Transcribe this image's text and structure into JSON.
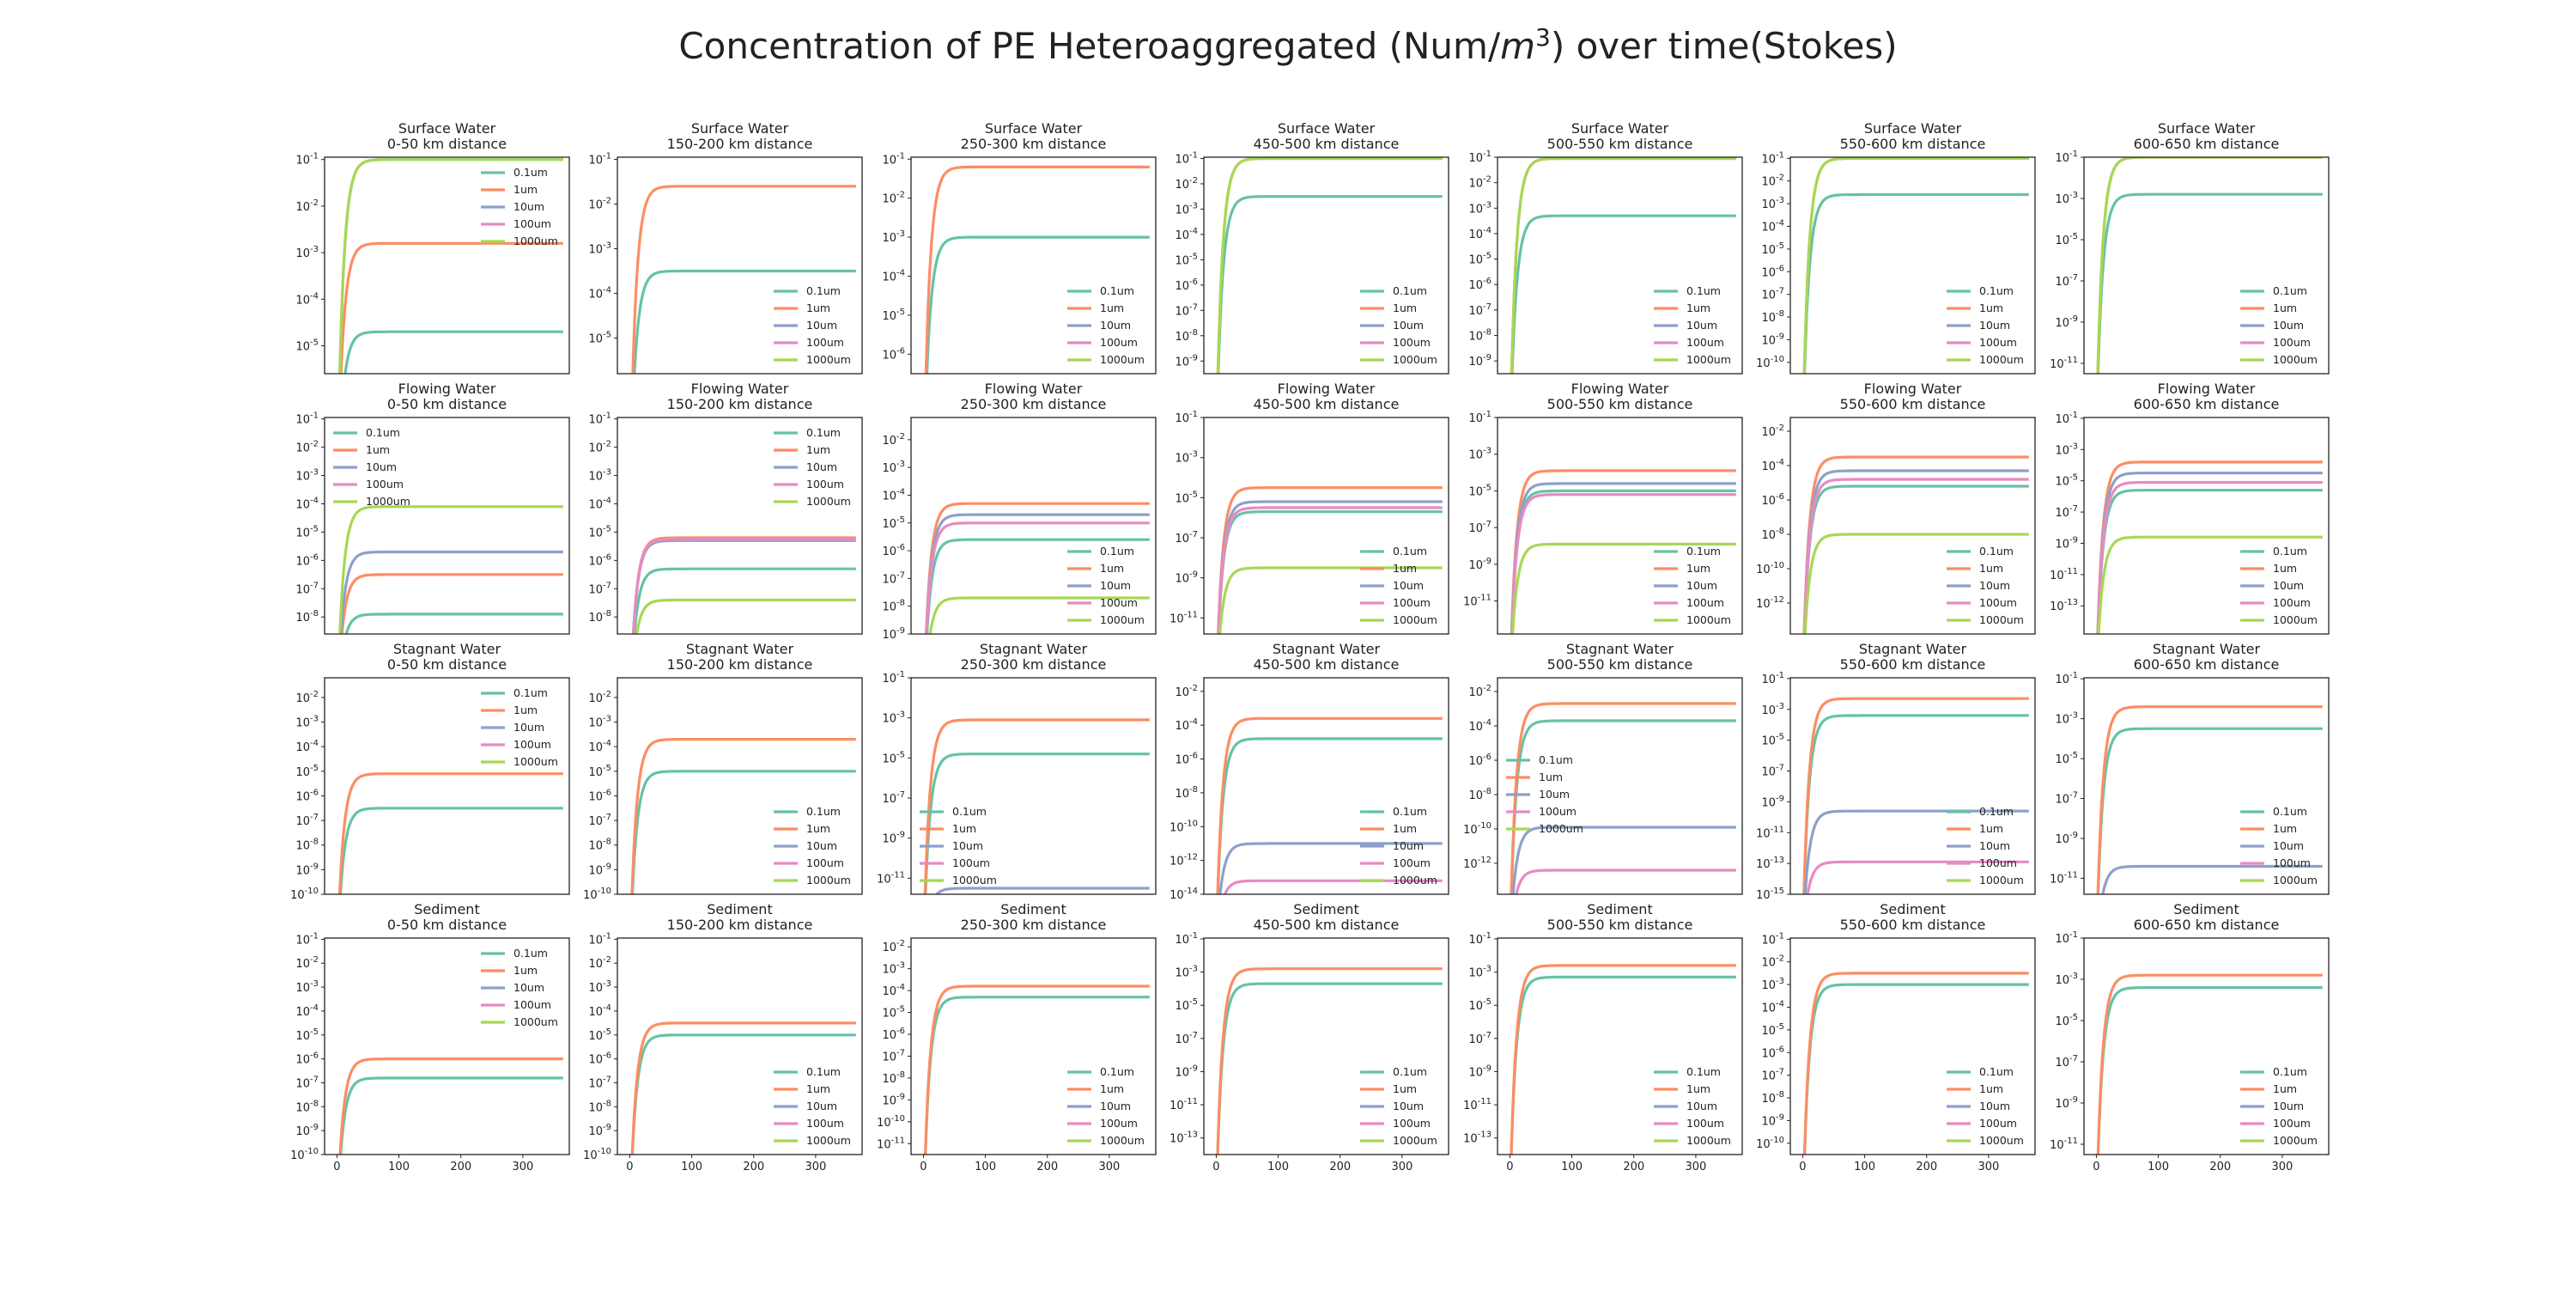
{
  "title_main": "Concentration of PE Heteroaggregated (Num/",
  "title_unit_m": "m",
  "title_unit_exp": "3",
  "title_tail": ") over time(Stokes)",
  "series_colors": {
    "0.1um": "#66c2a5",
    "1um": "#fc8d62",
    "10um": "#8da0cb",
    "100um": "#e78ac3",
    "1000um": "#a6d854"
  },
  "x_ticks": [
    0,
    100,
    200,
    300
  ],
  "chart_data": [
    {
      "type": "line",
      "yscale": "log",
      "compartment": "Surface Water",
      "distance": "0-50 km distance",
      "xlim": [
        -20,
        375
      ],
      "ylim": [
        -5.6,
        -0.95
      ],
      "legend": "upper right",
      "series": [
        {
          "name": "0.1um",
          "level": -4.7
        },
        {
          "name": "1um",
          "level": -2.8
        },
        {
          "name": "10um",
          "level": -1.0
        },
        {
          "name": "100um",
          "level": null
        },
        {
          "name": "1000um",
          "level": -1.0
        }
      ]
    },
    {
      "type": "line",
      "yscale": "log",
      "compartment": "Surface Water",
      "distance": "150-200 km distance",
      "xlim": [
        -20,
        375
      ],
      "ylim": [
        -5.8,
        -0.95
      ],
      "legend": "lower right",
      "series": [
        {
          "name": "0.1um",
          "level": -3.5
        },
        {
          "name": "1um",
          "level": -1.6
        },
        {
          "name": "10um",
          "level": null
        },
        {
          "name": "100um",
          "level": null
        },
        {
          "name": "1000um",
          "level": null
        }
      ]
    },
    {
      "type": "line",
      "yscale": "log",
      "compartment": "Surface Water",
      "distance": "250-300 km distance",
      "xlim": [
        -20,
        375
      ],
      "ylim": [
        -6.5,
        -0.95
      ],
      "legend": "lower right",
      "series": [
        {
          "name": "0.1um",
          "level": -3.0
        },
        {
          "name": "1um",
          "level": -1.2
        },
        {
          "name": "10um",
          "level": null
        },
        {
          "name": "100um",
          "level": null
        },
        {
          "name": "1000um",
          "level": null
        }
      ]
    },
    {
      "type": "line",
      "yscale": "log",
      "compartment": "Surface Water",
      "distance": "450-500 km distance",
      "xlim": [
        -20,
        375
      ],
      "ylim": [
        -9.5,
        -0.95
      ],
      "legend": "lower right",
      "series": [
        {
          "name": "0.1um",
          "level": -2.5
        },
        {
          "name": "1um",
          "level": -1.0
        },
        {
          "name": "10um",
          "level": null
        },
        {
          "name": "100um",
          "level": null
        },
        {
          "name": "1000um",
          "level": -1.0
        }
      ]
    },
    {
      "type": "line",
      "yscale": "log",
      "compartment": "Surface Water",
      "distance": "500-550 km distance",
      "xlim": [
        -20,
        375
      ],
      "ylim": [
        -9.5,
        -1.0
      ],
      "legend": "lower right",
      "series": [
        {
          "name": "0.1um",
          "level": -3.3
        },
        {
          "name": "1um",
          "level": -1.05
        },
        {
          "name": "10um",
          "level": null
        },
        {
          "name": "100um",
          "level": null
        },
        {
          "name": "1000um",
          "level": -1.05
        }
      ]
    },
    {
      "type": "line",
      "yscale": "log",
      "compartment": "Surface Water",
      "distance": "550-600 km distance",
      "xlim": [
        -20,
        375
      ],
      "ylim": [
        -10.5,
        -0.95
      ],
      "legend": "lower right",
      "series": [
        {
          "name": "0.1um",
          "level": -2.6
        },
        {
          "name": "1um",
          "level": -1.0
        },
        {
          "name": "10um",
          "level": null
        },
        {
          "name": "100um",
          "level": null
        },
        {
          "name": "1000um",
          "level": -1.0
        }
      ]
    },
    {
      "type": "line",
      "yscale": "log",
      "compartment": "Surface Water",
      "distance": "600-650 km distance",
      "xlim": [
        -20,
        375
      ],
      "ylim": [
        -11.5,
        -1.0
      ],
      "legend": "lower right",
      "series": [
        {
          "name": "0.1um",
          "level": -2.8
        },
        {
          "name": "1um",
          "level": -1.0
        },
        {
          "name": "10um",
          "level": null
        },
        {
          "name": "100um",
          "level": null
        },
        {
          "name": "1000um",
          "level": -1.0
        }
      ]
    },
    {
      "type": "line",
      "yscale": "log",
      "compartment": "Flowing Water",
      "distance": "0-50 km distance",
      "xlim": [
        -20,
        375
      ],
      "ylim": [
        -8.6,
        -0.95
      ],
      "legend": "upper left",
      "series": [
        {
          "name": "0.1um",
          "level": -7.9
        },
        {
          "name": "1um",
          "level": -6.5
        },
        {
          "name": "10um",
          "level": -5.7
        },
        {
          "name": "100um",
          "level": null
        },
        {
          "name": "1000um",
          "level": -4.1
        }
      ]
    },
    {
      "type": "line",
      "yscale": "log",
      "compartment": "Flowing Water",
      "distance": "150-200 km distance",
      "xlim": [
        -20,
        375
      ],
      "ylim": [
        -8.6,
        -0.95
      ],
      "legend": "upper right",
      "series": [
        {
          "name": "0.1um",
          "level": -6.3
        },
        {
          "name": "1um",
          "level": -5.2
        },
        {
          "name": "10um",
          "level": -5.3
        },
        {
          "name": "100um",
          "level": -5.25
        },
        {
          "name": "1000um",
          "level": -7.4
        }
      ]
    },
    {
      "type": "line",
      "yscale": "log",
      "compartment": "Flowing Water",
      "distance": "250-300 km distance",
      "xlim": [
        -20,
        375
      ],
      "ylim": [
        -9.0,
        -1.2
      ],
      "legend": "lower right",
      "series": [
        {
          "name": "0.1um",
          "level": -5.6
        },
        {
          "name": "1um",
          "level": -4.3
        },
        {
          "name": "10um",
          "level": -4.7
        },
        {
          "name": "100um",
          "level": -5.0
        },
        {
          "name": "1000um",
          "level": -7.7
        }
      ]
    },
    {
      "type": "line",
      "yscale": "log",
      "compartment": "Flowing Water",
      "distance": "450-500 km distance",
      "xlim": [
        -20,
        375
      ],
      "ylim": [
        -11.8,
        -1.0
      ],
      "legend": "lower right",
      "series": [
        {
          "name": "0.1um",
          "level": -5.7
        },
        {
          "name": "1um",
          "level": -4.5
        },
        {
          "name": "10um",
          "level": -5.2
        },
        {
          "name": "100um",
          "level": -5.5
        },
        {
          "name": "1000um",
          "level": -8.5
        }
      ]
    },
    {
      "type": "line",
      "yscale": "log",
      "compartment": "Flowing Water",
      "distance": "500-550 km distance",
      "xlim": [
        -20,
        375
      ],
      "ylim": [
        -12.8,
        -1.0
      ],
      "legend": "lower right",
      "series": [
        {
          "name": "0.1um",
          "level": -5.0
        },
        {
          "name": "1um",
          "level": -3.9
        },
        {
          "name": "10um",
          "level": -4.6
        },
        {
          "name": "100um",
          "level": -5.2
        },
        {
          "name": "1000um",
          "level": -7.9
        }
      ]
    },
    {
      "type": "line",
      "yscale": "log",
      "compartment": "Flowing Water",
      "distance": "550-600 km distance",
      "xlim": [
        -20,
        375
      ],
      "ylim": [
        -13.8,
        -1.2
      ],
      "legend": "lower right",
      "series": [
        {
          "name": "0.1um",
          "level": -5.2
        },
        {
          "name": "1um",
          "level": -3.5
        },
        {
          "name": "10um",
          "level": -4.3
        },
        {
          "name": "100um",
          "level": -4.8
        },
        {
          "name": "1000um",
          "level": -8.0
        }
      ]
    },
    {
      "type": "line",
      "yscale": "log",
      "compartment": "Flowing Water",
      "distance": "600-650 km distance",
      "xlim": [
        -20,
        375
      ],
      "ylim": [
        -14.8,
        -0.95
      ],
      "legend": "lower right",
      "series": [
        {
          "name": "0.1um",
          "level": -5.6
        },
        {
          "name": "1um",
          "level": -3.8
        },
        {
          "name": "10um",
          "level": -4.5
        },
        {
          "name": "100um",
          "level": -5.1
        },
        {
          "name": "1000um",
          "level": -8.6
        }
      ]
    },
    {
      "type": "line",
      "yscale": "log",
      "compartment": "Stagnant Water",
      "distance": "0-50 km distance",
      "xlim": [
        -20,
        375
      ],
      "ylim": [
        -10.0,
        -1.2
      ],
      "legend": "upper right",
      "series": [
        {
          "name": "0.1um",
          "level": -6.5
        },
        {
          "name": "1um",
          "level": -5.1
        },
        {
          "name": "10um",
          "level": null
        },
        {
          "name": "100um",
          "level": null
        },
        {
          "name": "1000um",
          "level": null
        }
      ]
    },
    {
      "type": "line",
      "yscale": "log",
      "compartment": "Stagnant Water",
      "distance": "150-200 km distance",
      "xlim": [
        -20,
        375
      ],
      "ylim": [
        -10.0,
        -1.2
      ],
      "legend": "lower right",
      "series": [
        {
          "name": "0.1um",
          "level": -5.0
        },
        {
          "name": "1um",
          "level": -3.7
        },
        {
          "name": "10um",
          "level": null
        },
        {
          "name": "100um",
          "level": null
        },
        {
          "name": "1000um",
          "level": null
        }
      ]
    },
    {
      "type": "line",
      "yscale": "log",
      "compartment": "Stagnant Water",
      "distance": "250-300 km distance",
      "xlim": [
        -20,
        375
      ],
      "ylim": [
        -11.8,
        -1.0
      ],
      "legend": "lower left",
      "series": [
        {
          "name": "0.1um",
          "level": -4.8
        },
        {
          "name": "1um",
          "level": -3.1
        },
        {
          "name": "10um",
          "level": -11.5
        },
        {
          "name": "100um",
          "level": null
        },
        {
          "name": "1000um",
          "level": null
        }
      ]
    },
    {
      "type": "line",
      "yscale": "log",
      "compartment": "Stagnant Water",
      "distance": "450-500 km distance",
      "xlim": [
        -20,
        375
      ],
      "ylim": [
        -14.0,
        -1.2
      ],
      "legend": "lower right",
      "series": [
        {
          "name": "0.1um",
          "level": -4.8
        },
        {
          "name": "1um",
          "level": -3.6
        },
        {
          "name": "10um",
          "level": -11.0
        },
        {
          "name": "100um",
          "level": -13.2
        },
        {
          "name": "1000um",
          "level": null
        }
      ]
    },
    {
      "type": "line",
      "yscale": "log",
      "compartment": "Stagnant Water",
      "distance": "500-550 km distance",
      "xlim": [
        -20,
        375
      ],
      "ylim": [
        -13.8,
        -1.2
      ],
      "legend": "center left",
      "series": [
        {
          "name": "0.1um",
          "level": -3.7
        },
        {
          "name": "1um",
          "level": -2.7
        },
        {
          "name": "10um",
          "level": -9.9
        },
        {
          "name": "100um",
          "level": -12.4
        },
        {
          "name": "1000um",
          "level": null
        }
      ]
    },
    {
      "type": "line",
      "yscale": "log",
      "compartment": "Stagnant Water",
      "distance": "550-600 km distance",
      "xlim": [
        -20,
        375
      ],
      "ylim": [
        -15.0,
        -0.95
      ],
      "legend": "lower right",
      "series": [
        {
          "name": "0.1um",
          "level": -3.4
        },
        {
          "name": "1um",
          "level": -2.3
        },
        {
          "name": "10um",
          "level": -9.6
        },
        {
          "name": "100um",
          "level": -12.9
        },
        {
          "name": "1000um",
          "level": null
        }
      ]
    },
    {
      "type": "line",
      "yscale": "log",
      "compartment": "Stagnant Water",
      "distance": "600-650 km distance",
      "xlim": [
        -20,
        375
      ],
      "ylim": [
        -11.8,
        -0.95
      ],
      "legend": "lower right",
      "series": [
        {
          "name": "0.1um",
          "level": -3.5
        },
        {
          "name": "1um",
          "level": -2.4
        },
        {
          "name": "10um",
          "level": -10.4
        },
        {
          "name": "100um",
          "level": null
        },
        {
          "name": "1000um",
          "level": null
        }
      ]
    },
    {
      "type": "line",
      "yscale": "log",
      "compartment": "Sediment",
      "distance": "0-50 km distance",
      "xlim": [
        -20,
        375
      ],
      "ylim": [
        -10.0,
        -0.95
      ],
      "legend": "upper right",
      "series": [
        {
          "name": "0.1um",
          "level": -6.8
        },
        {
          "name": "1um",
          "level": -6.0
        },
        {
          "name": "10um",
          "level": null
        },
        {
          "name": "100um",
          "level": null
        },
        {
          "name": "1000um",
          "level": null
        }
      ]
    },
    {
      "type": "line",
      "yscale": "log",
      "compartment": "Sediment",
      "distance": "150-200 km distance",
      "xlim": [
        -20,
        375
      ],
      "ylim": [
        -10.0,
        -0.95
      ],
      "legend": "lower right",
      "series": [
        {
          "name": "0.1um",
          "level": -5.0
        },
        {
          "name": "1um",
          "level": -4.5
        },
        {
          "name": "10um",
          "level": null
        },
        {
          "name": "100um",
          "level": null
        },
        {
          "name": "1000um",
          "level": null
        }
      ]
    },
    {
      "type": "line",
      "yscale": "log",
      "compartment": "Sediment",
      "distance": "250-300 km distance",
      "xlim": [
        -20,
        375
      ],
      "ylim": [
        -11.5,
        -1.6
      ],
      "legend": "lower right",
      "series": [
        {
          "name": "0.1um",
          "level": -4.3
        },
        {
          "name": "1um",
          "level": -3.8
        },
        {
          "name": "10um",
          "level": null
        },
        {
          "name": "100um",
          "level": null
        },
        {
          "name": "1000um",
          "level": null
        }
      ]
    },
    {
      "type": "line",
      "yscale": "log",
      "compartment": "Sediment",
      "distance": "450-500 km distance",
      "xlim": [
        -20,
        375
      ],
      "ylim": [
        -14.0,
        -0.95
      ],
      "legend": "lower right",
      "series": [
        {
          "name": "0.1um",
          "level": -3.7
        },
        {
          "name": "1um",
          "level": -2.8
        },
        {
          "name": "10um",
          "level": null
        },
        {
          "name": "100um",
          "level": null
        },
        {
          "name": "1000um",
          "level": null
        }
      ]
    },
    {
      "type": "line",
      "yscale": "log",
      "compartment": "Sediment",
      "distance": "500-550 km distance",
      "xlim": [
        -20,
        375
      ],
      "ylim": [
        -14.0,
        -0.95
      ],
      "legend": "lower right",
      "series": [
        {
          "name": "0.1um",
          "level": -3.3
        },
        {
          "name": "1um",
          "level": -2.6
        },
        {
          "name": "10um",
          "level": null
        },
        {
          "name": "100um",
          "level": null
        },
        {
          "name": "1000um",
          "level": null
        }
      ]
    },
    {
      "type": "line",
      "yscale": "log",
      "compartment": "Sediment",
      "distance": "550-600 km distance",
      "xlim": [
        -20,
        375
      ],
      "ylim": [
        -10.5,
        -0.95
      ],
      "legend": "lower right",
      "series": [
        {
          "name": "0.1um",
          "level": -3.0
        },
        {
          "name": "1um",
          "level": -2.5
        },
        {
          "name": "10um",
          "level": null
        },
        {
          "name": "100um",
          "level": null
        },
        {
          "name": "1000um",
          "level": null
        }
      ]
    },
    {
      "type": "line",
      "yscale": "log",
      "compartment": "Sediment",
      "distance": "600-650 km distance",
      "xlim": [
        -20,
        375
      ],
      "ylim": [
        -11.5,
        -1.0
      ],
      "legend": "lower right",
      "series": [
        {
          "name": "0.1um",
          "level": -3.4
        },
        {
          "name": "1um",
          "level": -2.8
        },
        {
          "name": "10um",
          "level": null
        },
        {
          "name": "100um",
          "level": null
        },
        {
          "name": "1000um",
          "level": null
        }
      ]
    }
  ]
}
